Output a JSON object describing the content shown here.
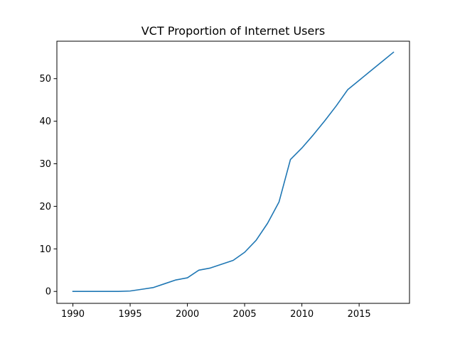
{
  "chart_data": {
    "type": "line",
    "title": "VCT Proportion of Internet Users",
    "xlabel": "",
    "ylabel": "",
    "x_ticks": [
      1990,
      1995,
      2000,
      2005,
      2010,
      2015
    ],
    "y_ticks": [
      0,
      10,
      20,
      30,
      40,
      50
    ],
    "xlim": [
      1988.6,
      2019.4
    ],
    "ylim": [
      -2.8,
      58.8
    ],
    "grid": false,
    "series": [
      {
        "color": "#1f77b4",
        "x": [
          1990,
          1991,
          1992,
          1993,
          1994,
          1995,
          1996,
          1997,
          1998,
          1999,
          2000,
          2001,
          2002,
          2003,
          2004,
          2005,
          2006,
          2007,
          2008,
          2009,
          2010,
          2011,
          2012,
          2013,
          2014,
          2015,
          2016,
          2017,
          2018
        ],
        "y": [
          0,
          0,
          0,
          0,
          0,
          0.1,
          0.5,
          0.9,
          1.8,
          2.7,
          3.2,
          5.0,
          5.5,
          6.4,
          7.3,
          9.2,
          12.0,
          16.0,
          21.0,
          31.0,
          33.7,
          36.8,
          40.1,
          43.6,
          47.4,
          49.6,
          51.8,
          54.0,
          56.2
        ]
      }
    ]
  }
}
